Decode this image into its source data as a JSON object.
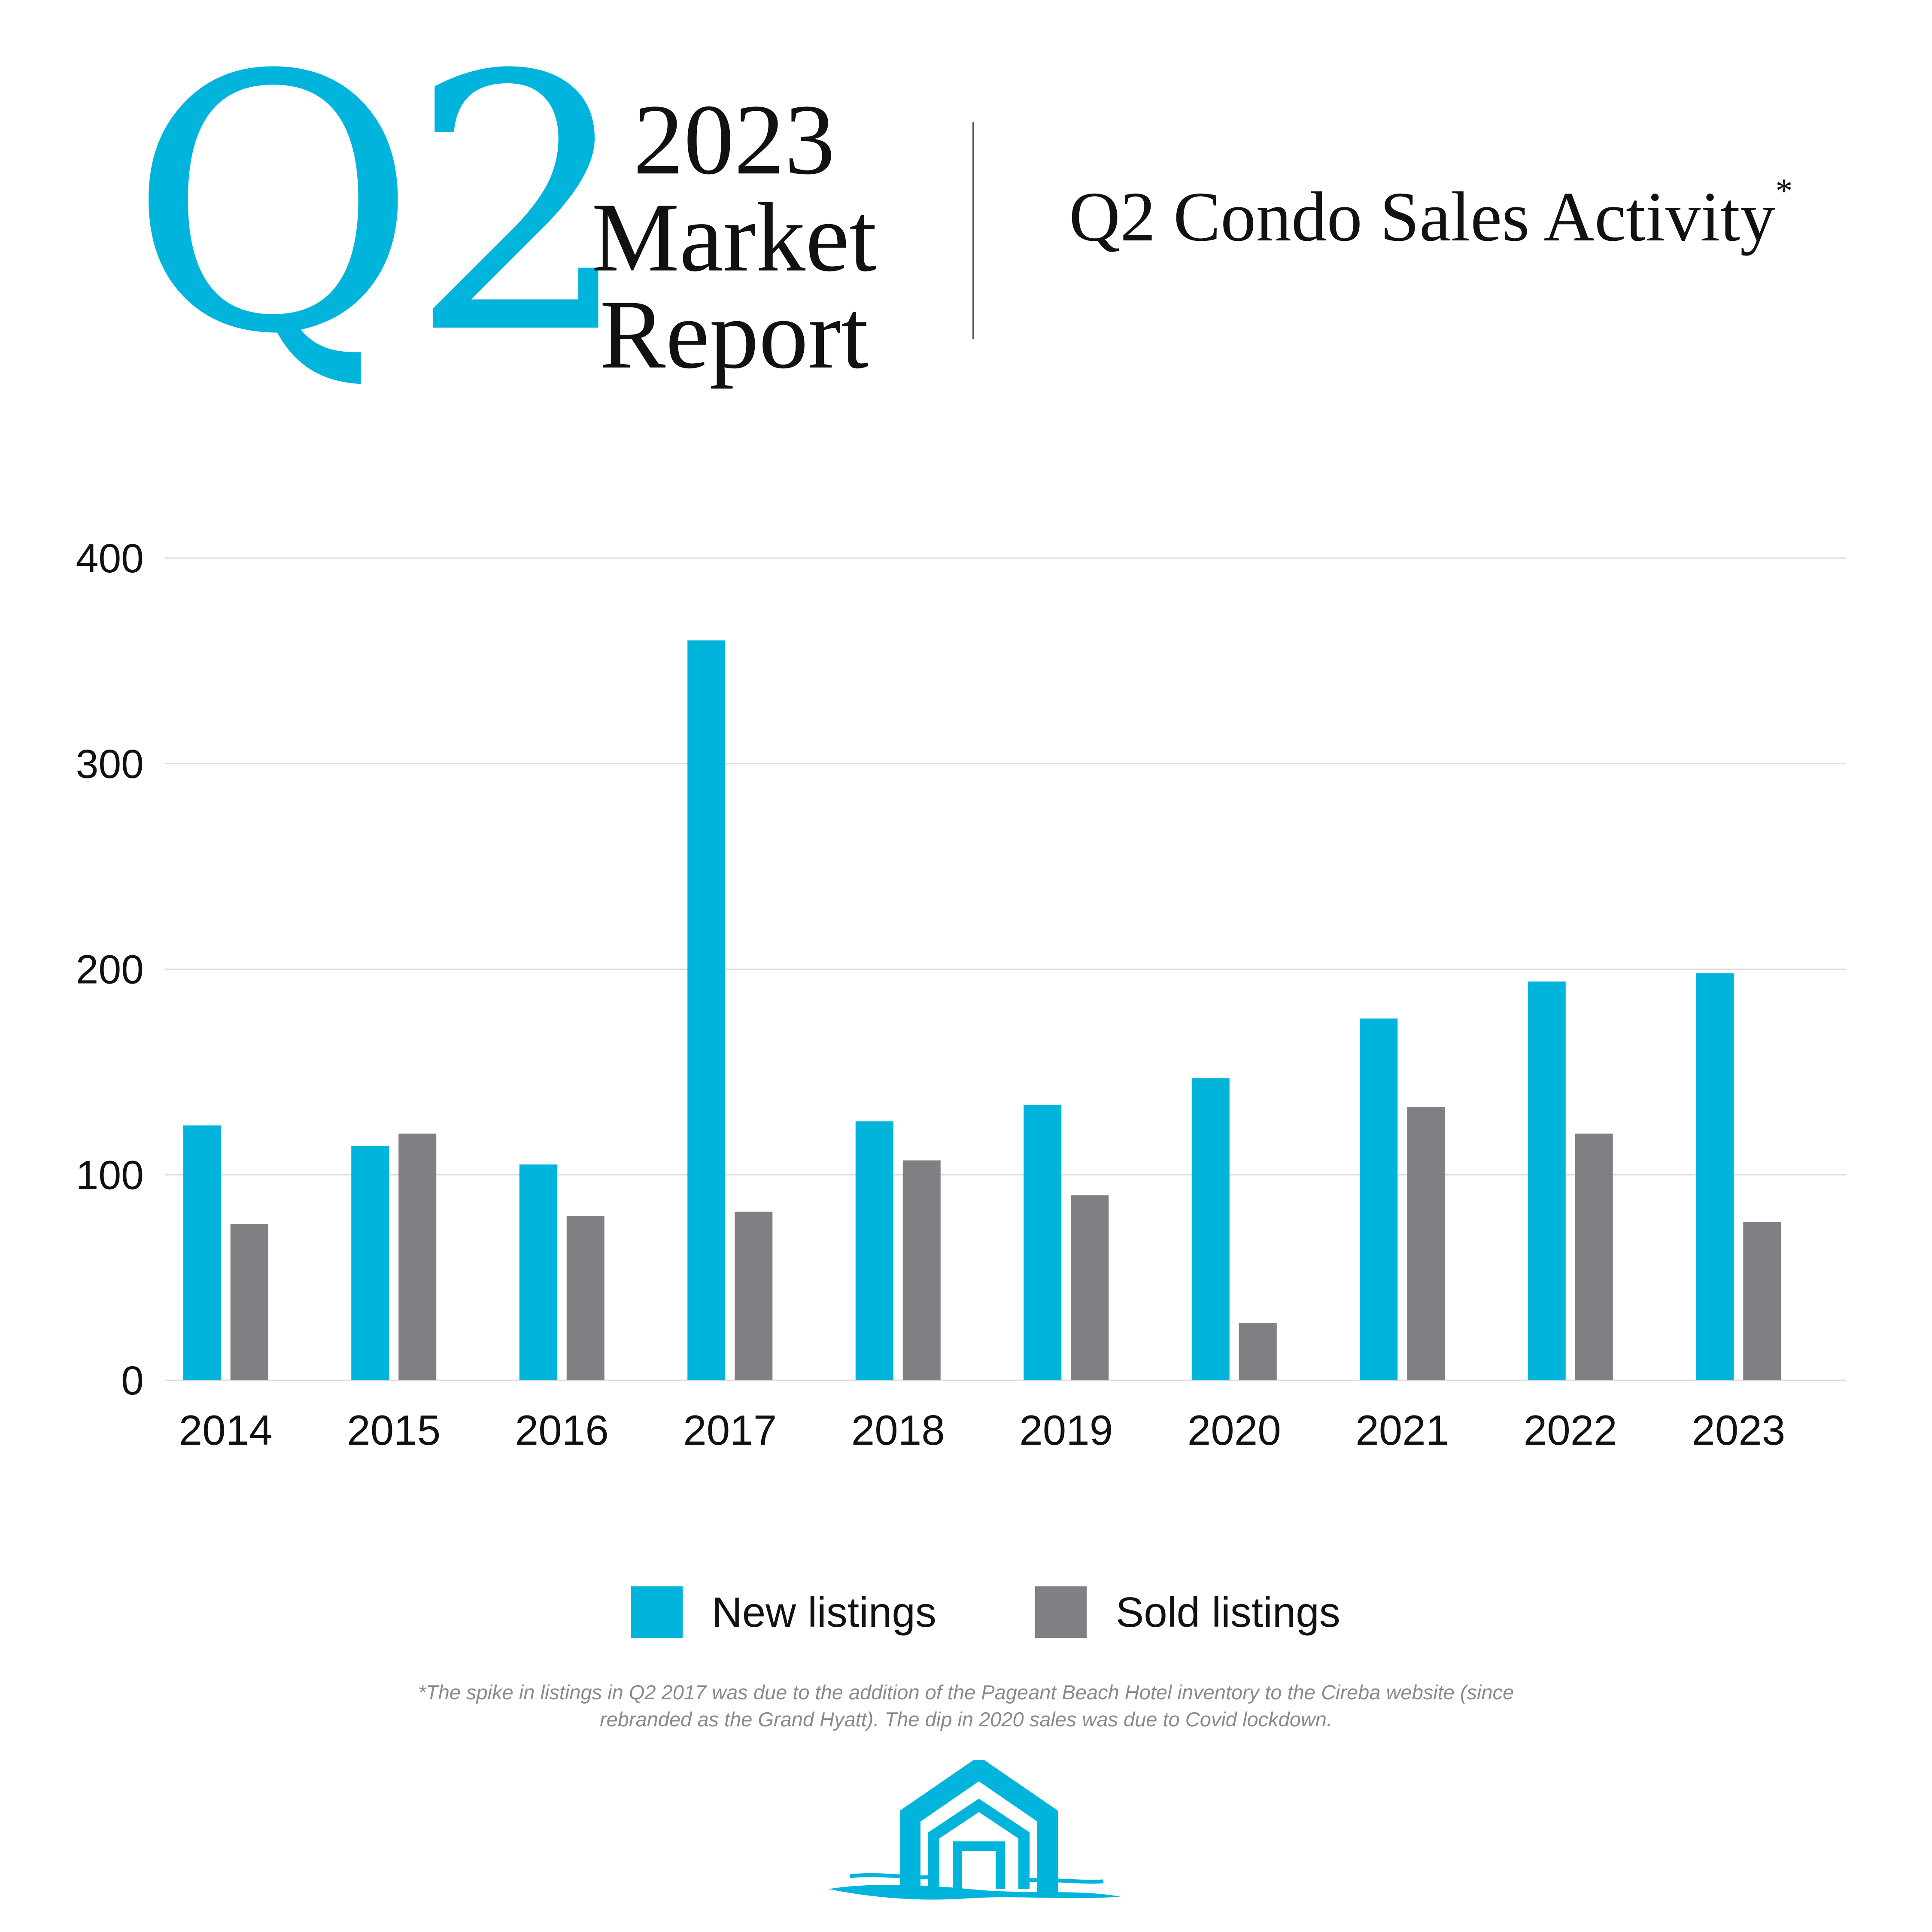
{
  "header": {
    "quarter_mark": "Q2",
    "year": "2023",
    "line1": "Market",
    "line2": "Report",
    "chart_title": "Q2 Condo Sales Activity",
    "chart_title_marker": "*"
  },
  "colors": {
    "accent": "#00b4dc",
    "new_listings": "#00b4dc",
    "sold_listings": "#808084",
    "grid": "#dddddd",
    "footnote": "#8a8a8a"
  },
  "legend": {
    "new_label": "New listings",
    "sold_label": "Sold listings"
  },
  "footnote": "*The spike in listings in Q2 2017 was due to the addition of the Pageant Beach Hotel inventory to the Cireba website (since rebranded as the Grand Hyatt). The dip in 2020 sales was due to Covid lockdown.",
  "logo": {
    "icon": "house-brushstroke-logo-icon"
  },
  "chart_data": {
    "type": "bar",
    "title": "Q2 Condo Sales Activity*",
    "xlabel": "",
    "ylabel": "",
    "categories": [
      "2014",
      "2015",
      "2016",
      "2017",
      "2018",
      "2019",
      "2020",
      "2021",
      "2022",
      "2023"
    ],
    "ylim": [
      0,
      400
    ],
    "yticks": [
      0,
      100,
      200,
      300,
      400
    ],
    "grid": true,
    "legend_position": "bottom-center",
    "series": [
      {
        "name": "New listings",
        "values": [
          124,
          114,
          105,
          360,
          126,
          134,
          147,
          176,
          194,
          198
        ]
      },
      {
        "name": "Sold listings",
        "values": [
          76,
          120,
          80,
          82,
          107,
          90,
          28,
          133,
          120,
          77
        ]
      }
    ]
  }
}
